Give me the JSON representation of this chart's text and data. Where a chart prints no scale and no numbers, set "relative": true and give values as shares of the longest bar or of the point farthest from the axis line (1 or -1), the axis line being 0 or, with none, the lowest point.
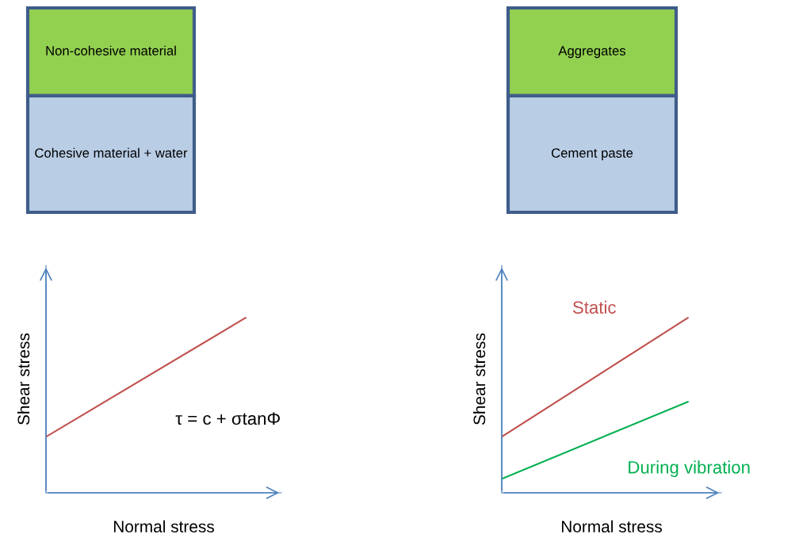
{
  "chart_data": [
    {
      "type": "other",
      "annotations": [
        "Non-cohesive material",
        "Cohesive material + water"
      ],
      "colors": [
        "#92d050",
        "#b9cde5"
      ]
    },
    {
      "type": "other",
      "annotations": [
        "Aggregates",
        "Cement paste"
      ],
      "colors": [
        "#92d050",
        "#b9cde5"
      ]
    },
    {
      "type": "line",
      "relative": true,
      "categories": [
        null,
        null
      ],
      "xlabel": "Normal stress",
      "ylabel": "Shear stress",
      "tick_labels": false,
      "annotations": [
        "τ = c + σtanΦ"
      ],
      "series": [
        {
          "color": "#c0504d",
          "values": [
            0.32,
            1
          ]
        }
      ]
    },
    {
      "type": "line",
      "relative": true,
      "categories": [
        null,
        null
      ],
      "xlabel": "Normal stress",
      "ylabel": "Shear stress",
      "tick_labels": false,
      "series": [
        {
          "name": "Static",
          "color": "#c0504d",
          "values": [
            0.32,
            1
          ]
        },
        {
          "name": "During vibration",
          "color": "#00b050",
          "values": [
            0.08,
            0.52
          ]
        }
      ]
    }
  ]
}
